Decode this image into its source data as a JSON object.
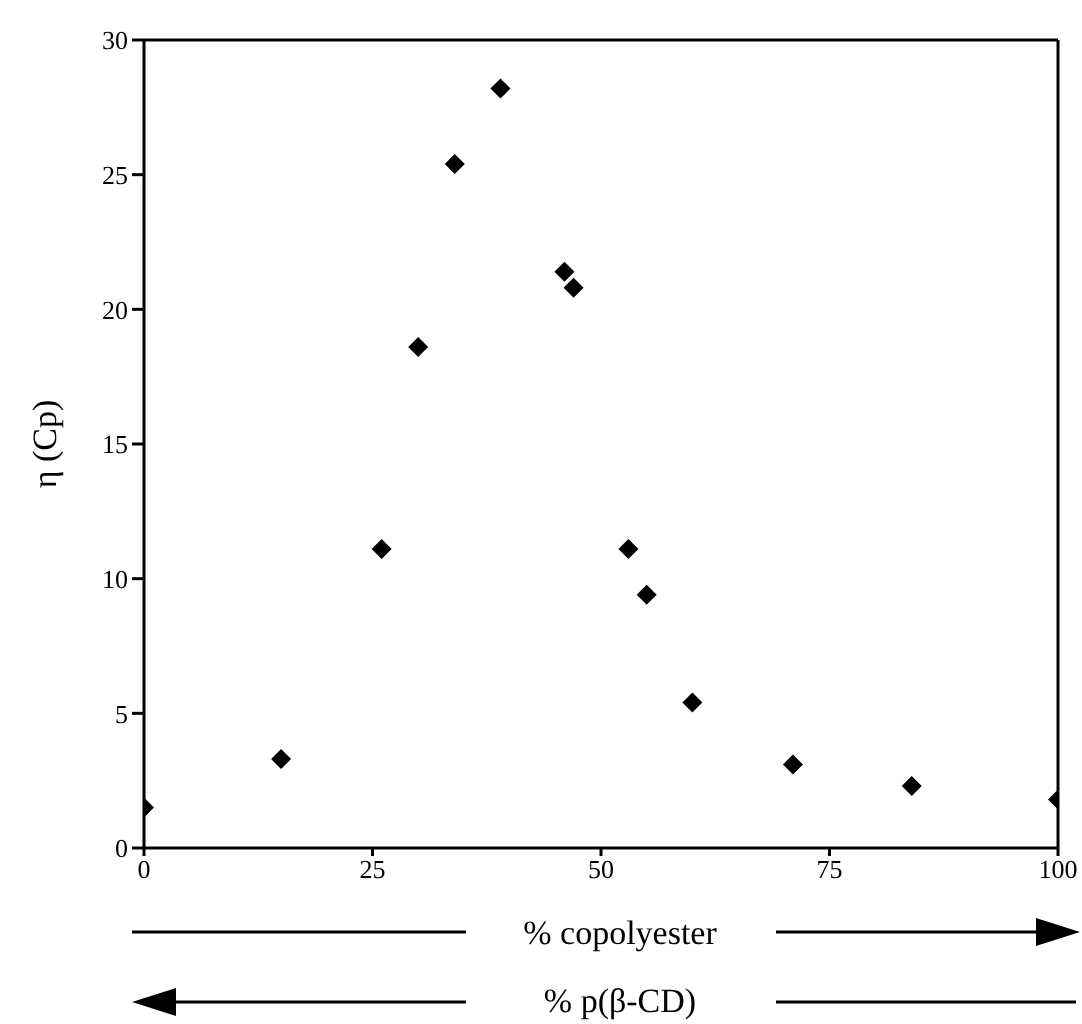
{
  "chart_data": {
    "type": "scatter",
    "xlabel": "% copolyester",
    "ylabel": "η (Cp)",
    "annotations": [
      "% p(β-CD)"
    ],
    "x": [
      0,
      15,
      26,
      30,
      34,
      39,
      46,
      47,
      53,
      55,
      60,
      71,
      84,
      100
    ],
    "series": [
      {
        "color": "#000000",
        "values": [
          1.5,
          3.3,
          11.1,
          18.6,
          25.4,
          28.2,
          21.4,
          20.8,
          11.1,
          9.4,
          5.4,
          3.1,
          2.3,
          1.8
        ]
      }
    ],
    "xlim": [
      0,
      100
    ],
    "xticks": [
      0,
      25,
      50,
      75,
      100
    ],
    "ylim": [
      0,
      30
    ],
    "yticks": [
      0,
      5,
      10,
      15,
      20,
      25,
      30
    ],
    "marker": "diamond"
  }
}
